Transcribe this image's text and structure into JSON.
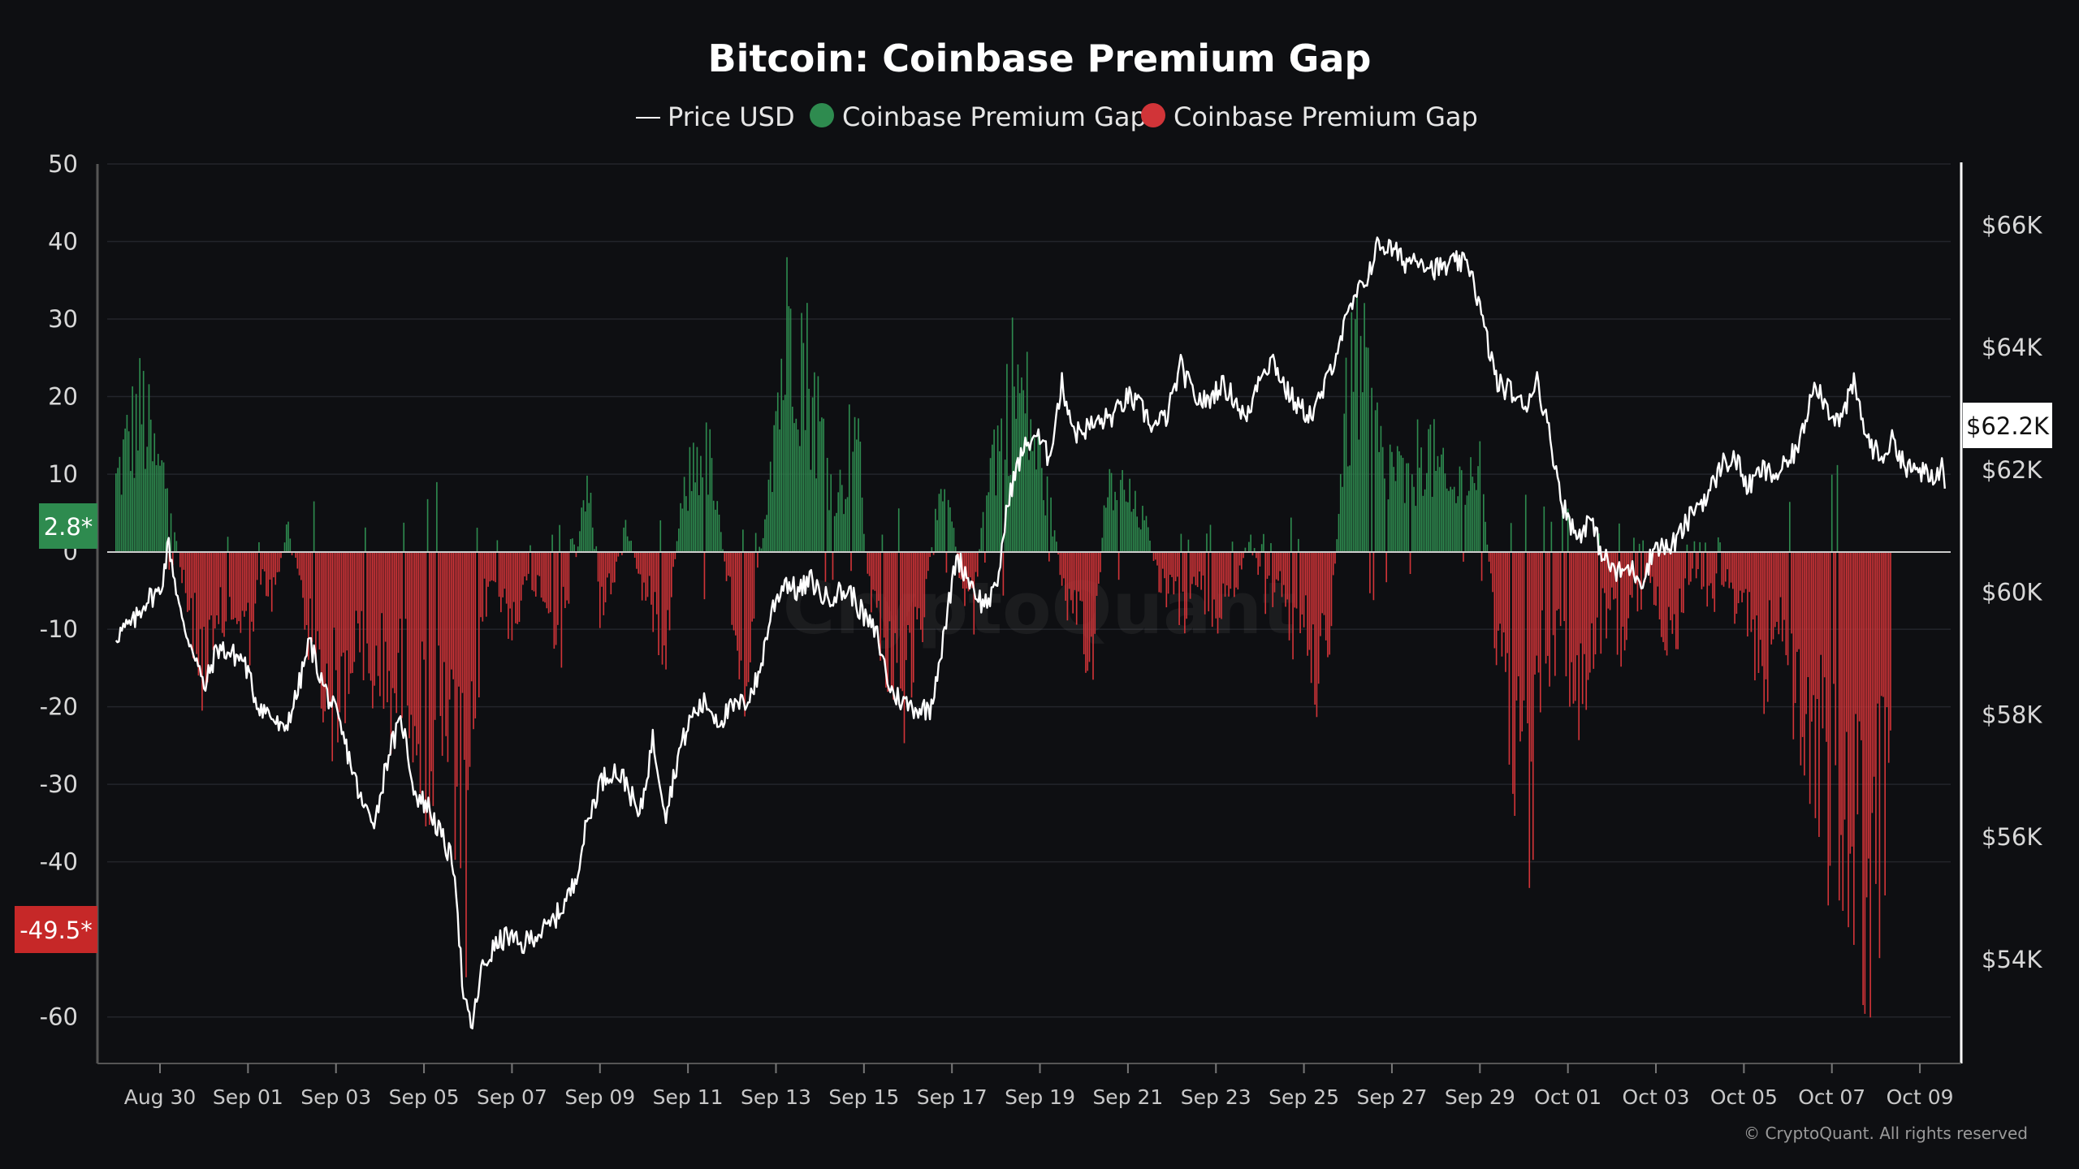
{
  "chart_data": {
    "type": "bar",
    "title": "Bitcoin: Coinbase Premium Gap",
    "legend": [
      {
        "name": "Price USD",
        "kind": "line",
        "color": "#ffffff"
      },
      {
        "name": "Coinbase Premium Gap",
        "kind": "dot",
        "color": "#2e8b4f"
      },
      {
        "name": "Coinbase Premium Gap",
        "kind": "dot",
        "color": "#d13438"
      }
    ],
    "left_axis": {
      "ticks": [
        "50",
        "40",
        "30",
        "20",
        "10",
        "0",
        "-10",
        "-20",
        "-30",
        "-40",
        "-60"
      ],
      "values": [
        50,
        40,
        30,
        20,
        10,
        0,
        -10,
        -20,
        -30,
        -40,
        -60
      ],
      "range": [
        -66,
        50
      ]
    },
    "right_axis": {
      "ticks": [
        "$66K",
        "$64K",
        "$62K",
        "$60K",
        "$58K",
        "$56K",
        "$54K"
      ],
      "values": [
        66000,
        64000,
        62000,
        60000,
        58000,
        56000,
        54000
      ],
      "range": [
        52300,
        67000
      ]
    },
    "x_ticks": [
      "Aug 30",
      "Sep 01",
      "Sep 03",
      "Sep 05",
      "Sep 07",
      "Sep 09",
      "Sep 11",
      "Sep 13",
      "Sep 15",
      "Sep 17",
      "Sep 19",
      "Sep 21",
      "Sep 23",
      "Sep 25",
      "Sep 27",
      "Sep 29",
      "Oct 01",
      "Oct 03",
      "Oct 05",
      "Oct 07",
      "Oct 09"
    ],
    "x_range_days": [
      -1.2,
      40.7
    ],
    "badges": {
      "left_green": "2.8*",
      "left_red": "-49.5*",
      "right_price": "$62.2K"
    },
    "colors": {
      "positive": "#2e8b4f",
      "negative": "#d13438",
      "price": "#ffffff",
      "badge_green": "#2e8b4f",
      "badge_red": "#c62828"
    },
    "premium_key_points": [
      [
        -1.0,
        12
      ],
      [
        -0.7,
        20
      ],
      [
        -0.4,
        25
      ],
      [
        -0.1,
        15
      ],
      [
        0.2,
        12
      ],
      [
        0.5,
        -5
      ],
      [
        0.8,
        -15
      ],
      [
        1.1,
        -22
      ],
      [
        1.4,
        -12
      ],
      [
        1.7,
        -10
      ],
      [
        2.0,
        -15
      ],
      [
        2.3,
        -5
      ],
      [
        2.6,
        -8
      ],
      [
        2.9,
        5
      ],
      [
        3.2,
        -5
      ],
      [
        3.5,
        -20
      ],
      [
        3.8,
        -25
      ],
      [
        4.1,
        -28
      ],
      [
        4.4,
        -15
      ],
      [
        4.7,
        -22
      ],
      [
        5.0,
        -20
      ],
      [
        5.3,
        -25
      ],
      [
        5.6,
        -20
      ],
      [
        5.9,
        -30
      ],
      [
        6.2,
        -35
      ],
      [
        6.5,
        -30
      ],
      [
        6.8,
        -45
      ],
      [
        7.0,
        -60
      ],
      [
        7.3,
        -10
      ],
      [
        7.6,
        -5
      ],
      [
        7.9,
        -12
      ],
      [
        8.2,
        -8
      ],
      [
        8.5,
        -5
      ],
      [
        8.8,
        -8
      ],
      [
        9.1,
        -15
      ],
      [
        9.4,
        -5
      ],
      [
        9.7,
        15
      ],
      [
        10.0,
        -10
      ],
      [
        10.3,
        -5
      ],
      [
        10.6,
        5
      ],
      [
        10.9,
        -5
      ],
      [
        11.2,
        -10
      ],
      [
        11.5,
        -15
      ],
      [
        11.8,
        5
      ],
      [
        12.1,
        15
      ],
      [
        12.4,
        20
      ],
      [
        12.7,
        5
      ],
      [
        13.0,
        -10
      ],
      [
        13.3,
        -20
      ],
      [
        13.6,
        -5
      ],
      [
        13.9,
        20
      ],
      [
        14.2,
        35
      ],
      [
        14.4,
        45
      ],
      [
        14.6,
        35
      ],
      [
        14.9,
        25
      ],
      [
        15.2,
        15
      ],
      [
        15.5,
        10
      ],
      [
        15.8,
        25
      ],
      [
        16.1,
        -5
      ],
      [
        16.4,
        -15
      ],
      [
        16.7,
        -20
      ],
      [
        17.0,
        -25
      ],
      [
        17.3,
        -15
      ],
      [
        17.6,
        5
      ],
      [
        17.9,
        10
      ],
      [
        18.2,
        -5
      ],
      [
        18.5,
        -10
      ],
      [
        18.8,
        15
      ],
      [
        19.1,
        20
      ],
      [
        19.4,
        30
      ],
      [
        19.7,
        25
      ],
      [
        20.0,
        15
      ],
      [
        20.3,
        5
      ],
      [
        20.6,
        -10
      ],
      [
        20.9,
        -15
      ],
      [
        21.2,
        -20
      ],
      [
        21.5,
        10
      ],
      [
        21.8,
        12
      ],
      [
        22.1,
        8
      ],
      [
        22.4,
        5
      ],
      [
        22.7,
        -5
      ],
      [
        23.0,
        -8
      ],
      [
        23.3,
        -10
      ],
      [
        23.6,
        -5
      ],
      [
        23.9,
        -12
      ],
      [
        24.2,
        -8
      ],
      [
        24.5,
        -5
      ],
      [
        24.8,
        5
      ],
      [
        25.1,
        -10
      ],
      [
        25.4,
        -5
      ],
      [
        25.7,
        -15
      ],
      [
        26.0,
        -10
      ],
      [
        26.3,
        -20
      ],
      [
        26.6,
        -15
      ],
      [
        26.9,
        20
      ],
      [
        27.2,
        35
      ],
      [
        27.5,
        25
      ],
      [
        27.8,
        15
      ],
      [
        28.1,
        15
      ],
      [
        28.4,
        10
      ],
      [
        28.7,
        20
      ],
      [
        29.0,
        15
      ],
      [
        29.3,
        10
      ],
      [
        29.6,
        12
      ],
      [
        30.0,
        15
      ],
      [
        30.3,
        -10
      ],
      [
        30.6,
        -25
      ],
      [
        30.9,
        -35
      ],
      [
        31.1,
        -50
      ],
      [
        31.4,
        -20
      ],
      [
        31.7,
        -15
      ],
      [
        32.0,
        -20
      ],
      [
        32.3,
        -25
      ],
      [
        32.6,
        -15
      ],
      [
        32.9,
        -10
      ],
      [
        33.2,
        -15
      ],
      [
        33.5,
        -10
      ],
      [
        33.8,
        -5
      ],
      [
        34.1,
        -10
      ],
      [
        34.4,
        -15
      ],
      [
        34.7,
        -5
      ],
      [
        35.0,
        -5
      ],
      [
        35.3,
        -8
      ],
      [
        35.6,
        -5
      ],
      [
        35.9,
        -12
      ],
      [
        36.2,
        -15
      ],
      [
        36.5,
        -20
      ],
      [
        36.8,
        -10
      ],
      [
        37.1,
        -25
      ],
      [
        37.4,
        -30
      ],
      [
        37.7,
        -35
      ],
      [
        38.0,
        -45
      ],
      [
        38.3,
        -55
      ],
      [
        38.6,
        -50
      ],
      [
        38.9,
        -60
      ],
      [
        39.2,
        -45
      ]
    ],
    "price_key_points": [
      [
        -1.0,
        59300
      ],
      [
        -0.6,
        59500
      ],
      [
        -0.3,
        59900
      ],
      [
        0.0,
        60000
      ],
      [
        0.2,
        60800
      ],
      [
        0.5,
        59500
      ],
      [
        0.8,
        59000
      ],
      [
        1.0,
        58400
      ],
      [
        1.3,
        59100
      ],
      [
        1.6,
        59000
      ],
      [
        1.9,
        58900
      ],
      [
        2.2,
        58200
      ],
      [
        2.5,
        58000
      ],
      [
        2.8,
        57700
      ],
      [
        3.1,
        58300
      ],
      [
        3.4,
        59200
      ],
      [
        3.7,
        58500
      ],
      [
        4.0,
        58000
      ],
      [
        4.3,
        57300
      ],
      [
        4.6,
        56500
      ],
      [
        4.9,
        56300
      ],
      [
        5.2,
        57400
      ],
      [
        5.5,
        57900
      ],
      [
        5.8,
        56700
      ],
      [
        6.1,
        56500
      ],
      [
        6.4,
        56000
      ],
      [
        6.7,
        55500
      ],
      [
        6.9,
        53300
      ],
      [
        7.1,
        52900
      ],
      [
        7.3,
        53800
      ],
      [
        7.6,
        54200
      ],
      [
        7.9,
        54400
      ],
      [
        8.2,
        54200
      ],
      [
        8.5,
        54400
      ],
      [
        8.8,
        54500
      ],
      [
        9.1,
        54800
      ],
      [
        9.4,
        55200
      ],
      [
        9.7,
        56200
      ],
      [
        10.0,
        56900
      ],
      [
        10.3,
        57100
      ],
      [
        10.6,
        56900
      ],
      [
        10.9,
        56300
      ],
      [
        11.2,
        57600
      ],
      [
        11.5,
        56400
      ],
      [
        11.8,
        57400
      ],
      [
        12.1,
        58000
      ],
      [
        12.4,
        58200
      ],
      [
        12.7,
        57900
      ],
      [
        13.0,
        58100
      ],
      [
        13.3,
        58200
      ],
      [
        13.6,
        58600
      ],
      [
        13.9,
        59700
      ],
      [
        14.2,
        60200
      ],
      [
        14.5,
        60000
      ],
      [
        14.8,
        60200
      ],
      [
        15.1,
        59900
      ],
      [
        15.4,
        60000
      ],
      [
        15.7,
        60000
      ],
      [
        16.0,
        59600
      ],
      [
        16.3,
        59300
      ],
      [
        16.6,
        58400
      ],
      [
        16.9,
        58200
      ],
      [
        17.2,
        58100
      ],
      [
        17.5,
        58100
      ],
      [
        17.8,
        59200
      ],
      [
        18.1,
        60600
      ],
      [
        18.4,
        60200
      ],
      [
        18.7,
        59800
      ],
      [
        19.0,
        60000
      ],
      [
        19.3,
        61600
      ],
      [
        19.6,
        62300
      ],
      [
        19.9,
        62600
      ],
      [
        20.2,
        62200
      ],
      [
        20.5,
        63400
      ],
      [
        20.8,
        62600
      ],
      [
        21.1,
        62700
      ],
      [
        21.4,
        62800
      ],
      [
        21.7,
        62900
      ],
      [
        22.0,
        63200
      ],
      [
        22.3,
        63000
      ],
      [
        22.6,
        62700
      ],
      [
        22.9,
        62900
      ],
      [
        23.2,
        63700
      ],
      [
        23.5,
        63200
      ],
      [
        23.8,
        63100
      ],
      [
        24.1,
        63400
      ],
      [
        24.4,
        63200
      ],
      [
        24.7,
        62800
      ],
      [
        25.0,
        63600
      ],
      [
        25.3,
        63800
      ],
      [
        25.6,
        63300
      ],
      [
        25.9,
        63000
      ],
      [
        26.2,
        62900
      ],
      [
        26.5,
        63400
      ],
      [
        26.8,
        64100
      ],
      [
        27.1,
        64700
      ],
      [
        27.4,
        65100
      ],
      [
        27.7,
        65700
      ],
      [
        28.0,
        65600
      ],
      [
        28.3,
        65400
      ],
      [
        28.6,
        65500
      ],
      [
        28.9,
        65300
      ],
      [
        29.2,
        65300
      ],
      [
        29.5,
        65400
      ],
      [
        29.8,
        65300
      ],
      [
        30.1,
        64300
      ],
      [
        30.4,
        63400
      ],
      [
        30.7,
        63300
      ],
      [
        31.0,
        63000
      ],
      [
        31.3,
        63500
      ],
      [
        31.6,
        62500
      ],
      [
        31.9,
        61400
      ],
      [
        32.2,
        60900
      ],
      [
        32.5,
        61200
      ],
      [
        32.8,
        60600
      ],
      [
        33.1,
        60300
      ],
      [
        33.4,
        60400
      ],
      [
        33.7,
        60200
      ],
      [
        34.0,
        60800
      ],
      [
        34.3,
        60700
      ],
      [
        34.6,
        61000
      ],
      [
        34.9,
        61400
      ],
      [
        35.2,
        61600
      ],
      [
        35.5,
        62100
      ],
      [
        35.8,
        62200
      ],
      [
        36.1,
        61700
      ],
      [
        36.4,
        62000
      ],
      [
        36.7,
        61900
      ],
      [
        37.0,
        62100
      ],
      [
        37.3,
        62500
      ],
      [
        37.6,
        63500
      ],
      [
        37.9,
        63000
      ],
      [
        38.2,
        62800
      ],
      [
        38.5,
        63400
      ],
      [
        38.8,
        62500
      ],
      [
        39.1,
        62200
      ],
      [
        39.4,
        62500
      ],
      [
        39.7,
        62000
      ],
      [
        40.0,
        62000
      ],
      [
        40.3,
        61800
      ],
      [
        40.5,
        62100
      ],
      [
        40.6,
        61600
      ]
    ],
    "copyright": "© CryptoQuant. All rights reserved",
    "watermark": "CryptoQuant"
  }
}
